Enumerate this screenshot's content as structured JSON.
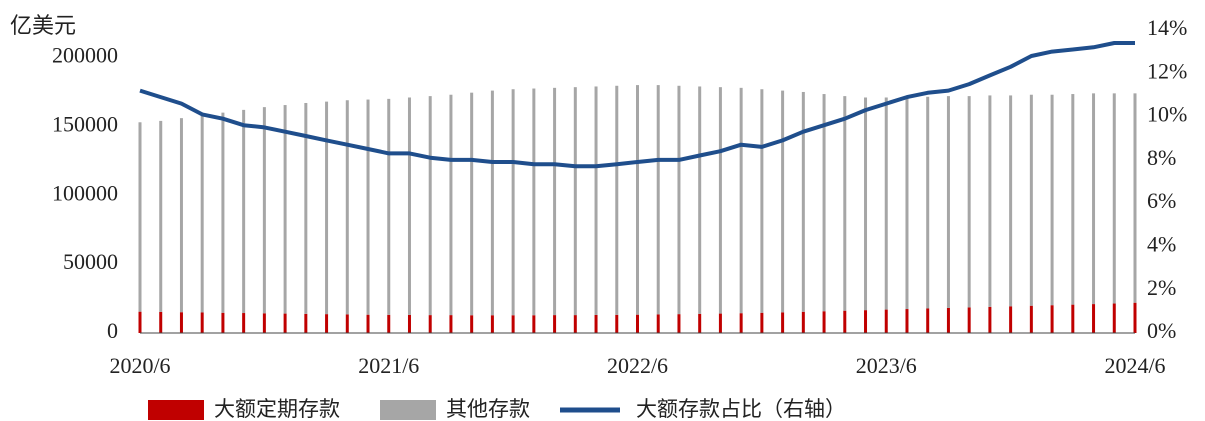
{
  "chart_data": {
    "type": "bar",
    "y_label": "亿美元",
    "categories": [
      "2020/6",
      null,
      null,
      null,
      null,
      null,
      null,
      null,
      null,
      null,
      null,
      null,
      "2021/6",
      null,
      null,
      null,
      null,
      null,
      null,
      null,
      null,
      null,
      null,
      null,
      "2022/6",
      null,
      null,
      null,
      null,
      null,
      null,
      null,
      null,
      null,
      null,
      null,
      "2023/6",
      null,
      null,
      null,
      null,
      null,
      null,
      null,
      null,
      null,
      null,
      null,
      "2024/6"
    ],
    "series": [
      {
        "name": "大额定期存款",
        "type": "bar",
        "color": "#c00000",
        "values": [
          15500,
          15300,
          15100,
          14900,
          14700,
          14500,
          14300,
          14100,
          13900,
          13700,
          13500,
          13300,
          13200,
          13100,
          13000,
          13000,
          12900,
          12900,
          12900,
          12900,
          13000,
          13000,
          13100,
          13200,
          13300,
          13500,
          13700,
          13900,
          14100,
          14400,
          14700,
          15000,
          15400,
          15800,
          16200,
          16600,
          17000,
          17400,
          17800,
          18200,
          18600,
          19000,
          19400,
          19800,
          20200,
          20600,
          21000,
          21400,
          22000
        ]
      },
      {
        "name": "其他存款",
        "type": "bar",
        "color": "#a6a6a6",
        "values": [
          137500,
          138700,
          140900,
          143100,
          145300,
          147500,
          149700,
          151400,
          153100,
          154300,
          155500,
          156200,
          156800,
          157900,
          159000,
          160000,
          161600,
          163100,
          164100,
          164600,
          165000,
          165500,
          165900,
          166300,
          166700,
          166500,
          165800,
          165100,
          164400,
          163600,
          162300,
          161000,
          159600,
          157700,
          155800,
          154400,
          154000,
          153600,
          153700,
          153800,
          153400,
          153500,
          153100,
          153200,
          152800,
          152900,
          153000,
          152600,
          152000
        ]
      },
      {
        "name": "大额存款占比（右轴）",
        "type": "line",
        "axis": "y2",
        "color": "#1f4e8c",
        "values": [
          11.2,
          10.9,
          10.6,
          10.1,
          9.9,
          9.6,
          9.5,
          9.3,
          9.1,
          8.9,
          8.7,
          8.5,
          8.3,
          8.3,
          8.1,
          8.0,
          8.0,
          7.9,
          7.9,
          7.8,
          7.8,
          7.7,
          7.7,
          7.8,
          7.9,
          8.0,
          8.0,
          8.2,
          8.4,
          8.7,
          8.6,
          8.9,
          9.3,
          9.6,
          9.9,
          10.3,
          10.6,
          10.9,
          11.1,
          11.2,
          11.5,
          11.9,
          12.3,
          12.8,
          13.0,
          13.1,
          13.2,
          13.4,
          13.4
        ]
      }
    ],
    "ylim": [
      0,
      220000
    ],
    "yticks": [
      0,
      50000,
      100000,
      150000,
      200000
    ],
    "y2lim": [
      0,
      14
    ],
    "y2ticks": [
      {
        "value": 0,
        "label": "0%"
      },
      {
        "value": 2,
        "label": "2%"
      },
      {
        "value": 4,
        "label": "4%"
      },
      {
        "value": 6,
        "label": "6%"
      },
      {
        "value": 8,
        "label": "8%"
      },
      {
        "value": 10,
        "label": "10%"
      },
      {
        "value": 12,
        "label": "12%"
      },
      {
        "value": 14,
        "label": "14%"
      }
    ],
    "legend": "bottom"
  }
}
